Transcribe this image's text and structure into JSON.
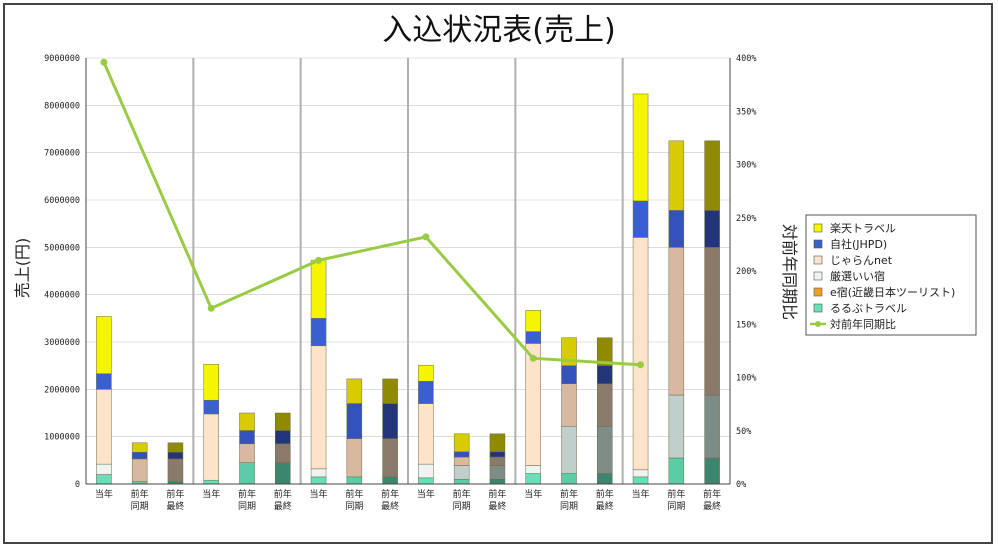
{
  "chart_data": {
    "type": "bar",
    "stacked": true,
    "title": "入込状況表(売上)",
    "ylabel": "売上(円)",
    "y2label": "対前年同期比",
    "ylim": [
      0,
      9000000
    ],
    "y2lim": [
      0,
      400
    ],
    "yticks": [
      "0",
      "1000000",
      "2000000",
      "3000000",
      "4000000",
      "5000000",
      "6000000",
      "7000000",
      "8000000",
      "9000000"
    ],
    "y2ticks": [
      "0%",
      "50%",
      "100%",
      "150%",
      "200%",
      "250%",
      "300%",
      "350%",
      "400%"
    ],
    "groups": 6,
    "categories": [
      [
        "当年"
      ],
      [
        "前年",
        "同期"
      ],
      [
        "前年",
        "最終"
      ],
      [
        "当年"
      ],
      [
        "前年",
        "同期"
      ],
      [
        "前年",
        "最終"
      ],
      [
        "当年"
      ],
      [
        "前年",
        "同期"
      ],
      [
        "前年",
        "最終"
      ],
      [
        "当年"
      ],
      [
        "前年",
        "同期"
      ],
      [
        "前年",
        "最終"
      ],
      [
        "当年"
      ],
      [
        "前年",
        "同期"
      ],
      [
        "前年",
        "最終"
      ],
      [
        "当年"
      ],
      [
        "前年",
        "同期"
      ],
      [
        "前年",
        "最終"
      ]
    ],
    "series": [
      {
        "name": "るるぶトラベル",
        "values": [
          200000,
          50000,
          50000,
          80000,
          450000,
          450000,
          150000,
          150000,
          150000,
          130000,
          100000,
          100000,
          220000,
          220000,
          220000,
          150000,
          550000,
          550000
        ]
      },
      {
        "name": "e宿(近畿日本ツーリスト)",
        "values": [
          0,
          0,
          0,
          0,
          0,
          0,
          0,
          0,
          0,
          0,
          0,
          0,
          0,
          0,
          0,
          0,
          0,
          0
        ]
      },
      {
        "name": "厳選いい宿",
        "values": [
          220000,
          0,
          0,
          0,
          0,
          0,
          170000,
          0,
          0,
          290000,
          290000,
          290000,
          170000,
          1000000,
          1000000,
          150000,
          1330000,
          1330000
        ]
      },
      {
        "name": "じゃらんnet",
        "values": [
          1580000,
          480000,
          480000,
          1400000,
          400000,
          400000,
          2600000,
          810000,
          810000,
          1280000,
          180000,
          180000,
          2580000,
          900000,
          900000,
          4910000,
          3120000,
          3120000
        ]
      },
      {
        "name": "自社(JHPD)",
        "values": [
          330000,
          140000,
          140000,
          290000,
          280000,
          280000,
          580000,
          740000,
          740000,
          470000,
          110000,
          110000,
          250000,
          380000,
          380000,
          770000,
          780000,
          780000
        ]
      },
      {
        "name": "楽天トラベル",
        "values": [
          1210000,
          200000,
          200000,
          760000,
          370000,
          370000,
          1230000,
          520000,
          520000,
          340000,
          380000,
          380000,
          450000,
          590000,
          590000,
          2260000,
          1470000,
          1470000
        ]
      }
    ],
    "ratio": {
      "name": "対前年同期比",
      "values": [
        396,
        165,
        210,
        232,
        118,
        112
      ]
    },
    "legend_position": "right",
    "colors": {
      "rakuten": "#f5f500",
      "jhpd": "#3a5fd0",
      "jalan": "#fde4c8",
      "gensen": "#eef4f2",
      "eyado": "#f0a020",
      "rurubu": "#66e0b8",
      "ratio": "#99cc44",
      "gridline": "#c8c8c8",
      "divider": "#b0b0b0"
    },
    "colors_final": {
      "rakuten": "#8f8a00",
      "jhpd": "#22357a",
      "jalan": "#8a7a6a",
      "gensen": "#7e8c88",
      "rurubu": "#3c8670"
    },
    "colors_prev": {
      "rakuten": "#d6cc00",
      "jhpd": "#3452bd",
      "jalan": "#d7b8a0",
      "gensen": "#c0cfcc",
      "rurubu": "#5ccca6"
    },
    "legend": [
      "楽天トラベル",
      "自社(JHPD)",
      "じゃらんnet",
      "厳選いい宿",
      "e宿(近畿日本ツーリスト)",
      "るるぶトラベル",
      "対前年同期比"
    ]
  }
}
